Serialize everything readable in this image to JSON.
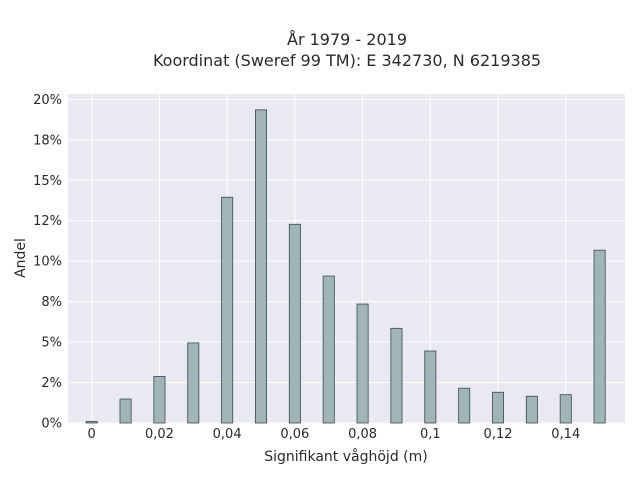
{
  "chart_data": {
    "type": "bar",
    "title_lines": [
      "År 1979 - 2019",
      "Koordinat (Sweref 99 TM): E 342730, N 6219385"
    ],
    "xlabel": "Signifikant våghöjd (m)",
    "ylabel": "Andel",
    "x": [
      0,
      0.01,
      0.02,
      0.03,
      0.04,
      0.05,
      0.06,
      0.07,
      0.08,
      0.09,
      0.1,
      0.11,
      0.12,
      0.13,
      0.14,
      0.15
    ],
    "values": [
      0.001,
      0.0148,
      0.0288,
      0.0495,
      0.1395,
      0.1935,
      0.1228,
      0.0908,
      0.0735,
      0.0585,
      0.0445,
      0.0215,
      0.019,
      0.0165,
      0.0175,
      0.1068
    ],
    "xlim": [
      -0.007,
      0.1575
    ],
    "ylim": [
      0,
      0.2033
    ],
    "xticks": [
      0,
      0.02,
      0.04,
      0.06,
      0.08,
      0.1,
      0.12,
      0.14
    ],
    "xtick_labels": [
      "0",
      "0,02",
      "0,04",
      "0,06",
      "0,08",
      "0,1",
      "0,12",
      "0,14"
    ],
    "yticks": [
      0,
      0.025,
      0.05,
      0.075,
      0.1,
      0.125,
      0.15,
      0.175,
      0.2
    ],
    "ytick_labels": [
      "0%",
      "2%",
      "5%",
      "8%",
      "10%",
      "12%",
      "15%",
      "18%",
      "20%"
    ],
    "grid": true,
    "colors": {
      "bar_fill": "#9fb5b6",
      "bar_stroke": "#3c4a4a",
      "plot_background": "#e9e9f1",
      "grid": "#ffffff"
    }
  }
}
